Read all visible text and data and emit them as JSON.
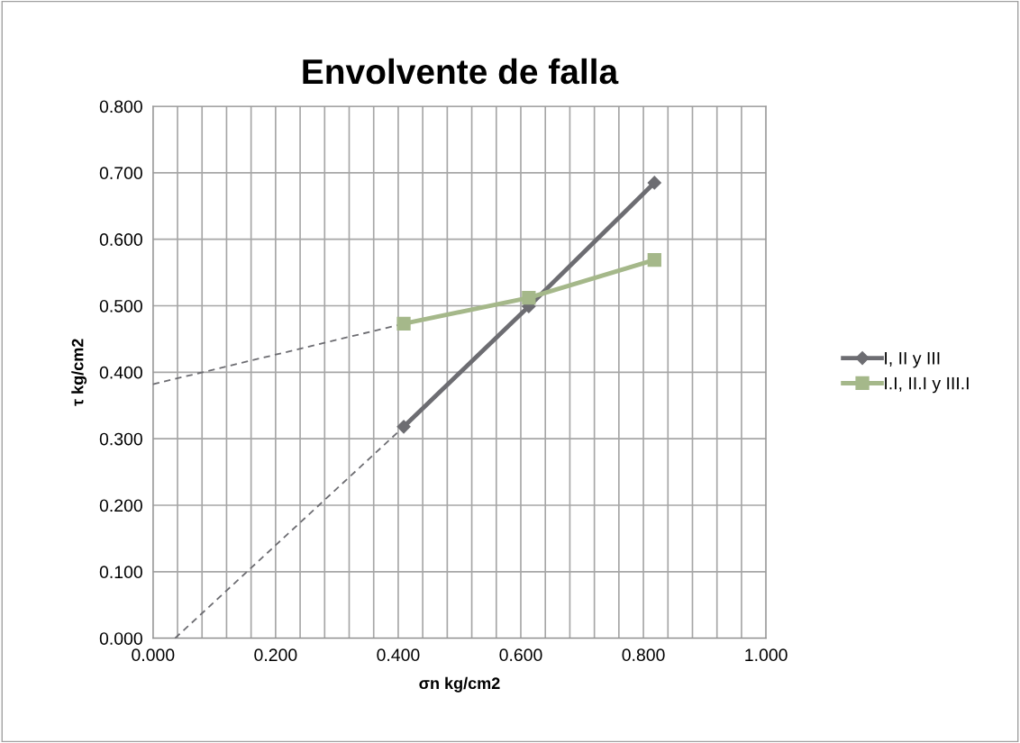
{
  "chart_data": {
    "type": "line",
    "title": "Envolvente de falla",
    "xlabel": "σn kg/cm2",
    "ylabel": "τ kg/cm2",
    "series": [
      {
        "name": "I, II y III",
        "color": "#6d6d72",
        "x": [
          0.409,
          0.613,
          0.818
        ],
        "values": [
          0.318,
          0.499,
          0.685
        ],
        "marker": "diamond"
      },
      {
        "name": "I.I, II.I y III.I",
        "color": "#a5b88a",
        "x": [
          0.409,
          0.613,
          0.818
        ],
        "values": [
          0.473,
          0.512,
          0.569
        ],
        "marker": "square"
      },
      {
        "color": "#6d6d72",
        "x": [
          0.036,
          0.409
        ],
        "values": [
          0.0,
          0.318
        ],
        "marker": "none",
        "line_style": "dashed"
      },
      {
        "color": "#6d6d72",
        "x": [
          0.0,
          0.409
        ],
        "values": [
          0.382,
          0.473
        ],
        "marker": "none",
        "line_style": "dashed"
      }
    ],
    "xlim": [
      0,
      1
    ],
    "xticks": [
      {
        "value": 0,
        "label": "0.000"
      },
      {
        "value": 0.04,
        "label": null
      },
      {
        "value": 0.08,
        "label": null
      },
      {
        "value": 0.12,
        "label": null
      },
      {
        "value": 0.16,
        "label": null
      },
      {
        "value": 0.2,
        "label": "0.200"
      },
      {
        "value": 0.24,
        "label": null
      },
      {
        "value": 0.28,
        "label": null
      },
      {
        "value": 0.32,
        "label": null
      },
      {
        "value": 0.36,
        "label": null
      },
      {
        "value": 0.4,
        "label": "0.400"
      },
      {
        "value": 0.44,
        "label": null
      },
      {
        "value": 0.48,
        "label": null
      },
      {
        "value": 0.52,
        "label": null
      },
      {
        "value": 0.56,
        "label": null
      },
      {
        "value": 0.6,
        "label": "0.600"
      },
      {
        "value": 0.64,
        "label": null
      },
      {
        "value": 0.68,
        "label": null
      },
      {
        "value": 0.72,
        "label": null
      },
      {
        "value": 0.76,
        "label": null
      },
      {
        "value": 0.8,
        "label": "0.800"
      },
      {
        "value": 0.84,
        "label": null
      },
      {
        "value": 0.88,
        "label": null
      },
      {
        "value": 0.92,
        "label": null
      },
      {
        "value": 0.96,
        "label": null
      },
      {
        "value": 1.0,
        "label": "1.000"
      }
    ],
    "ylim": [
      0,
      0.8
    ],
    "yticks": [
      {
        "value": 0,
        "label": "0.000"
      },
      {
        "value": 0.1,
        "label": "0.100"
      },
      {
        "value": 0.2,
        "label": "0.200"
      },
      {
        "value": 0.3,
        "label": "0.300"
      },
      {
        "value": 0.4,
        "label": "0.400"
      },
      {
        "value": 0.5,
        "label": "0.500"
      },
      {
        "value": 0.6,
        "label": "0.600"
      },
      {
        "value": 0.7,
        "label": "0.700"
      },
      {
        "value": 0.8,
        "label": "0.800"
      }
    ],
    "grid": true,
    "legend": "right"
  }
}
